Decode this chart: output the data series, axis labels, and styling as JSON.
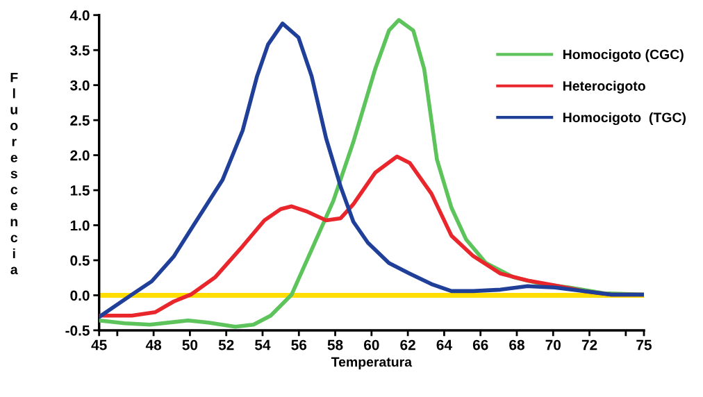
{
  "chart_data": {
    "type": "line",
    "xlabel": "Temperatura",
    "ylabel": "Fluorescencia",
    "xlim": [
      45,
      75
    ],
    "ylim": [
      -0.5,
      4.0
    ],
    "xticks": [
      45,
      {
        "value": 46,
        "label": null
      },
      48,
      50,
      52,
      54,
      56,
      58,
      60,
      62,
      64,
      66,
      68,
      70,
      72,
      {
        "value": 74,
        "label": null
      },
      75
    ],
    "yticks": [
      {
        "value": -0.5,
        "label": "-0.5"
      },
      {
        "value": 0,
        "label": "0.0"
      },
      0.5,
      {
        "value": 1,
        "label": "1.0"
      },
      1.5,
      {
        "value": 2,
        "label": "2.0"
      },
      2.5,
      {
        "value": 3,
        "label": "3.0"
      },
      3.5,
      {
        "value": 4,
        "label": "4.0"
      }
    ],
    "grid": false,
    "legend": "top right",
    "marker": "none",
    "line_style": "solid",
    "ref_lines": [
      {
        "axis": "y",
        "value": 0,
        "label": null,
        "color": "#ffdd00"
      }
    ],
    "series": [
      {
        "name": "Homocigoto (CGC)",
        "color": "#5cc45a",
        "x": [
          45,
          46.4,
          47.8,
          49.9,
          51,
          52.5,
          53.5,
          54.45,
          55.6,
          56.7,
          57.9,
          59,
          60.2,
          60.96,
          61.5,
          62.3,
          62.9,
          63.6,
          64.4,
          65.2,
          66.3,
          67.8,
          69.4,
          70.9,
          72.8,
          75
        ],
        "values": [
          -0.36,
          -0.4,
          -0.42,
          -0.36,
          -0.39,
          -0.45,
          -0.42,
          -0.29,
          0.01,
          0.65,
          1.35,
          2.19,
          3.23,
          3.78,
          3.93,
          3.78,
          3.23,
          1.94,
          1.25,
          0.8,
          0.46,
          0.26,
          0.16,
          0.11,
          0.03,
          0.01
        ]
      },
      {
        "name": "Heterocigoto",
        "color": "#e8262c",
        "x": [
          45,
          46.8,
          48.1,
          49.1,
          50.05,
          51.4,
          52.9,
          54.1,
          55,
          55.6,
          56.4,
          57.5,
          58.3,
          59,
          60.2,
          61.4,
          62.1,
          63.3,
          64.4,
          65.6,
          67.1,
          68.6,
          70.1,
          71.7,
          73.2,
          75
        ],
        "values": [
          -0.29,
          -0.29,
          -0.24,
          -0.09,
          0.01,
          0.26,
          0.7,
          1.07,
          1.23,
          1.27,
          1.2,
          1.07,
          1.1,
          1.3,
          1.75,
          1.98,
          1.89,
          1.45,
          0.85,
          0.56,
          0.31,
          0.21,
          0.14,
          0.06,
          0.01,
          0.01
        ]
      },
      {
        "name": "Homocigoto  (TGC)",
        "color": "#1f3f99",
        "x": [
          45,
          46.8,
          47.9,
          49.1,
          50.2,
          51.8,
          52.9,
          53.7,
          54.3,
          55.1,
          55.98,
          56.7,
          57.5,
          58.3,
          59,
          59.8,
          60.96,
          62.1,
          63.3,
          64.4,
          65.6,
          67.1,
          68.6,
          70.1,
          71.7,
          73.2,
          75
        ],
        "values": [
          -0.31,
          0.01,
          0.2,
          0.55,
          1.0,
          1.65,
          2.35,
          3.13,
          3.58,
          3.88,
          3.68,
          3.13,
          2.24,
          1.55,
          1.05,
          0.75,
          0.46,
          0.31,
          0.16,
          0.06,
          0.06,
          0.08,
          0.13,
          0.11,
          0.06,
          0.01,
          0.01
        ]
      }
    ]
  }
}
